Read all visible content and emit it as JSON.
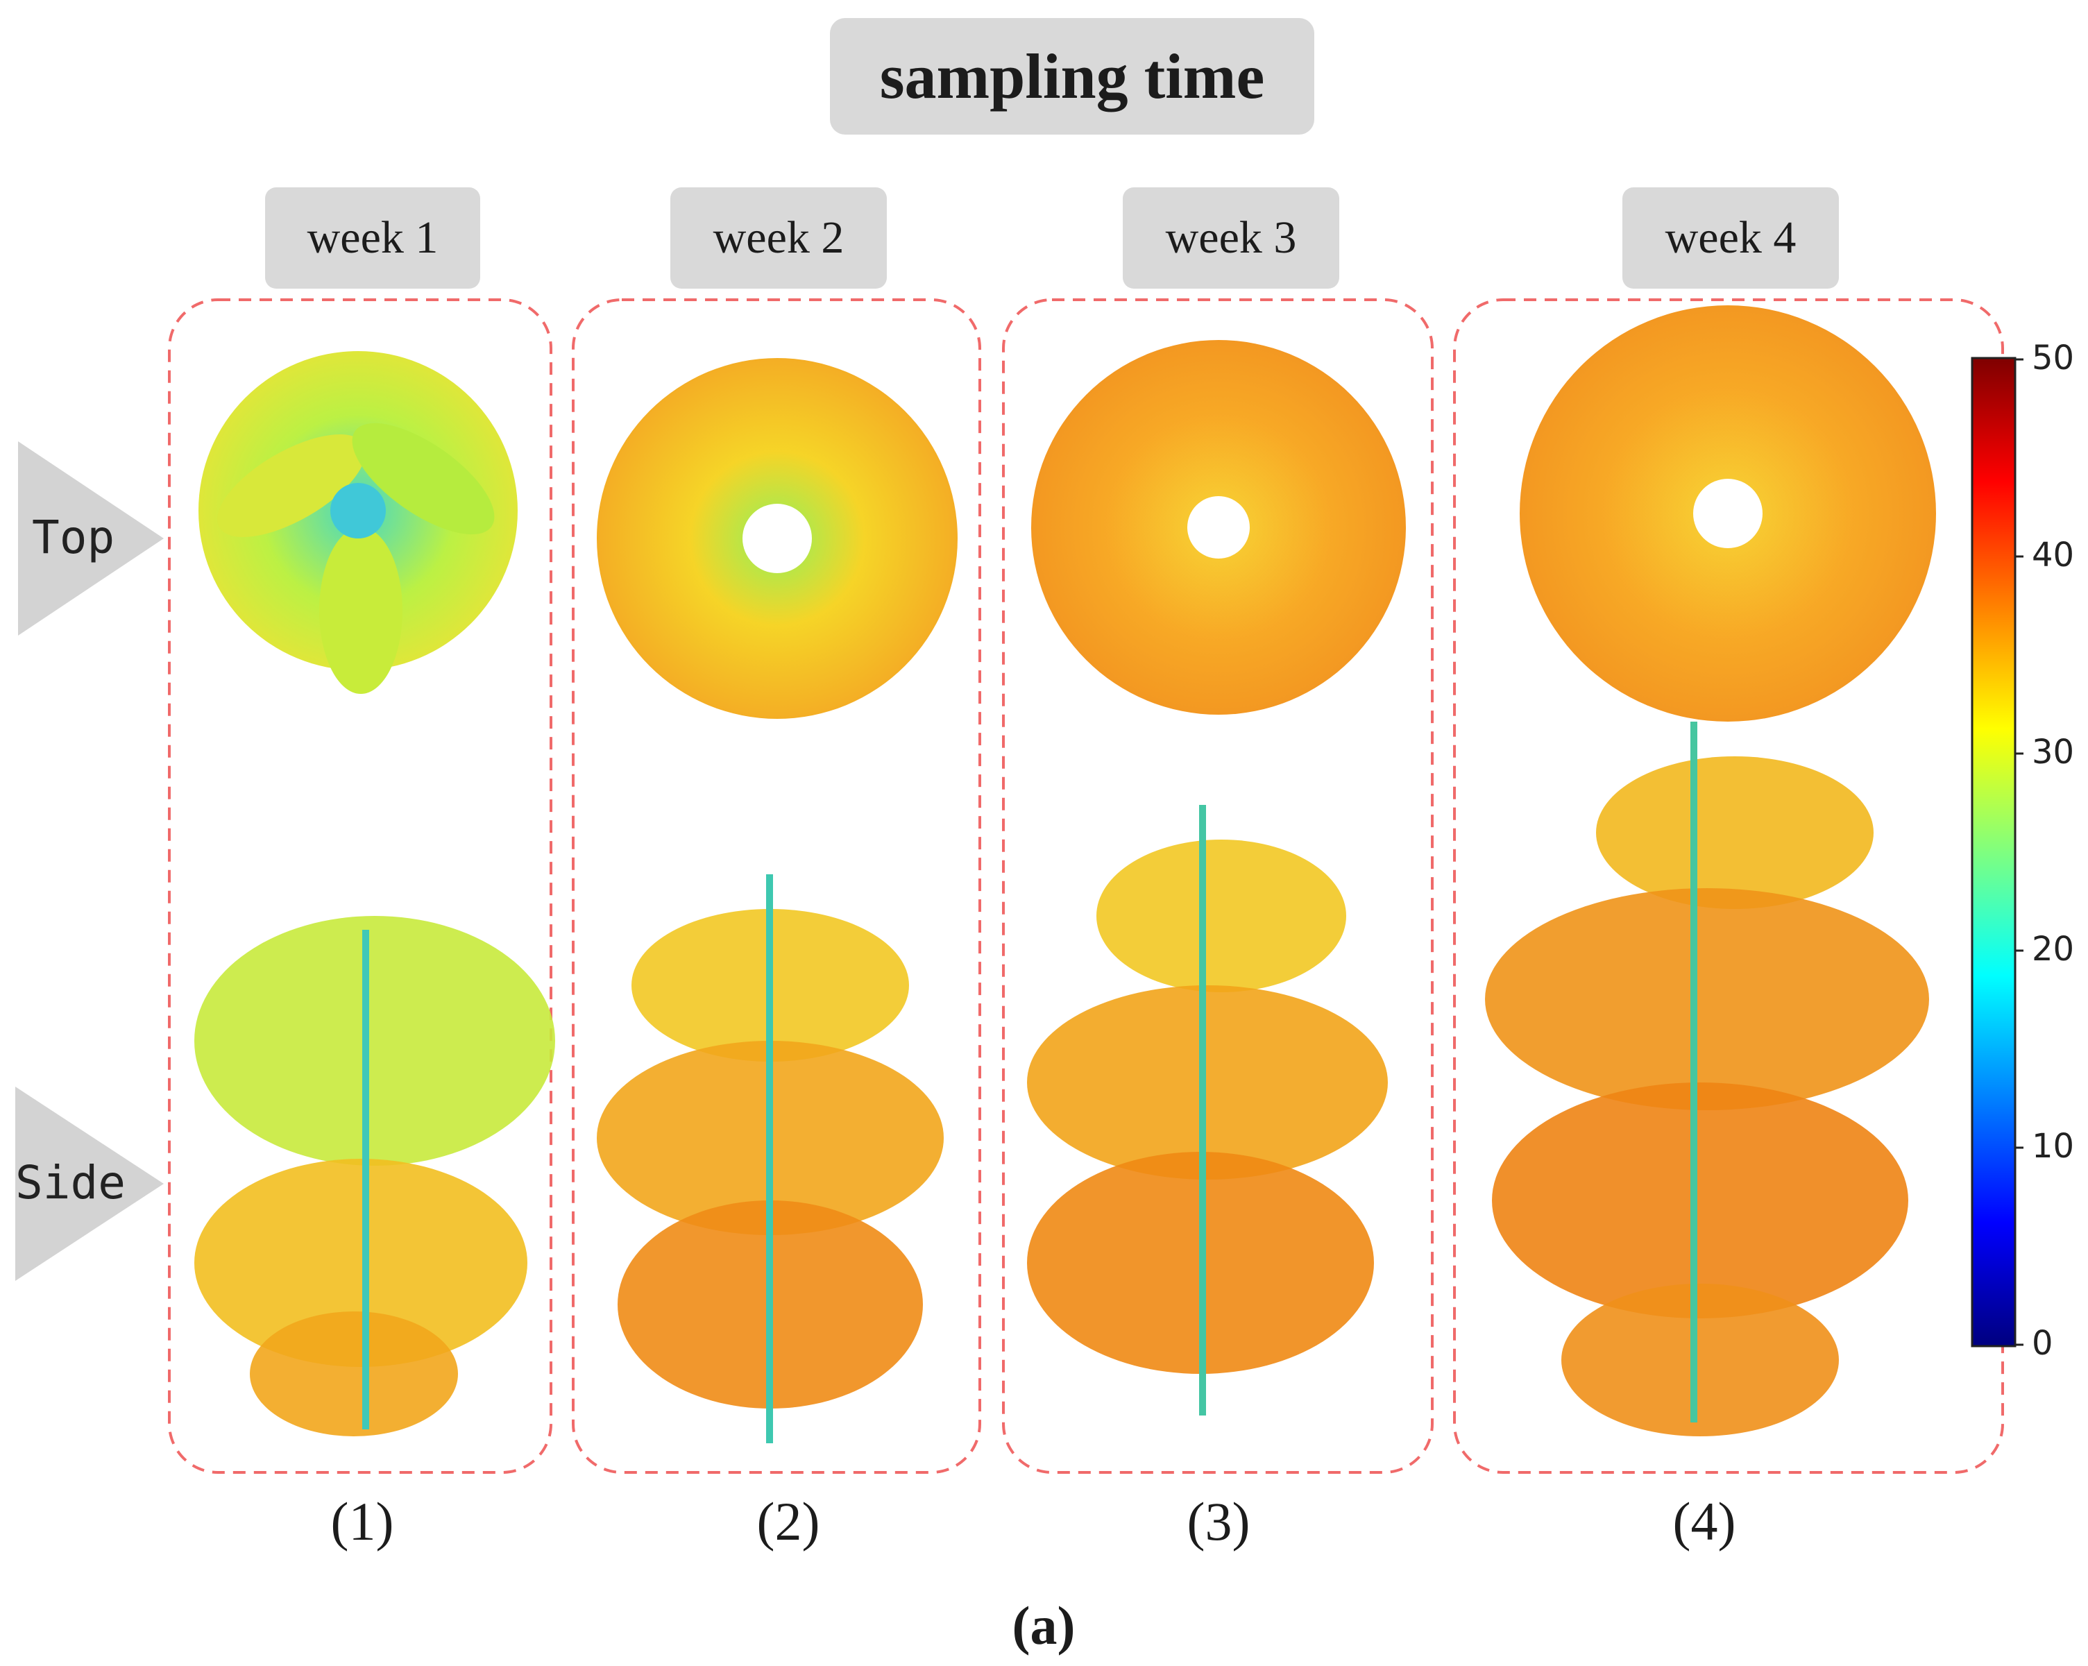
{
  "title": "sampling time",
  "view_labels": {
    "top": "Top",
    "side": "Side"
  },
  "panels": [
    {
      "week": "week 1",
      "number": "(1)"
    },
    {
      "week": "week 2",
      "number": "(2)"
    },
    {
      "week": "week 3",
      "number": "(3)"
    },
    {
      "week": "week 4",
      "number": "(4)"
    }
  ],
  "colorbar": {
    "min": 0,
    "max": 50,
    "ticks": [
      "50",
      "40",
      "30",
      "20",
      "10",
      "0"
    ],
    "colormap": "jet"
  },
  "subfigure_label": "(a)",
  "colors": {
    "panel_border": "#f06a6a",
    "label_box": "#d9d9d9",
    "arrow": "#d3d3d3"
  }
}
